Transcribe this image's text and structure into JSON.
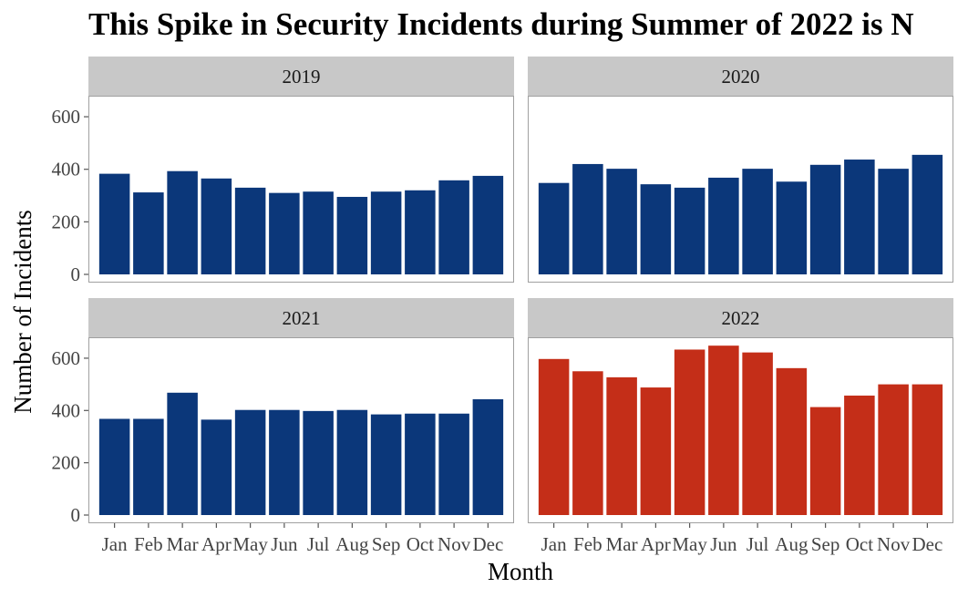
{
  "chart_data": {
    "type": "bar",
    "title": "This Spike in Security Incidents during Summer of 2022 is N",
    "xlabel": "Month",
    "ylabel": "Number of Incidents",
    "ylim": [
      0,
      680
    ],
    "yticks": [
      0,
      200,
      400,
      600
    ],
    "categories": [
      "Jan",
      "Feb",
      "Mar",
      "Apr",
      "May",
      "Jun",
      "Jul",
      "Aug",
      "Sep",
      "Oct",
      "Nov",
      "Dec"
    ],
    "grid": false,
    "facets": [
      {
        "label": "2019",
        "color": "#0b377a",
        "values": [
          383,
          312,
          393,
          365,
          330,
          310,
          315,
          295,
          315,
          320,
          358,
          375
        ]
      },
      {
        "label": "2020",
        "color": "#0b377a",
        "values": [
          348,
          420,
          402,
          343,
          330,
          368,
          402,
          353,
          417,
          437,
          402,
          455
        ]
      },
      {
        "label": "2021",
        "color": "#0b377a",
        "values": [
          368,
          368,
          468,
          365,
          402,
          402,
          398,
          402,
          385,
          388,
          388,
          443
        ]
      },
      {
        "label": "2022",
        "color": "#c42e18",
        "values": [
          597,
          550,
          527,
          488,
          633,
          648,
          622,
          562,
          413,
          457,
          500,
          500
        ]
      }
    ]
  }
}
